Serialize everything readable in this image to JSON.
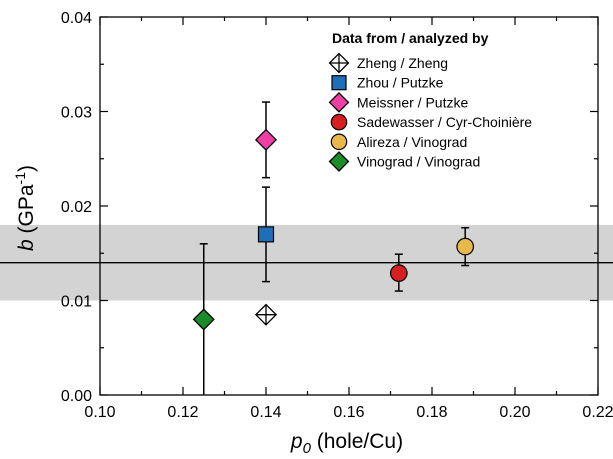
{
  "chart_data": {
    "type": "scatter",
    "x_label": {
      "symbol": "p",
      "subscript": "0",
      "rest": " (hole/Cu)"
    },
    "y_label": {
      "symbol": "b",
      "rest": " (GPa",
      "superscript": "-1",
      "close": ")"
    },
    "xlim": [
      0.1,
      0.22
    ],
    "ylim": [
      0.0,
      0.04
    ],
    "x_ticks": [
      "0.10",
      "0.12",
      "0.14",
      "0.16",
      "0.18",
      "0.20",
      "0.22"
    ],
    "y_ticks": [
      "0.00",
      "0.01",
      "0.02",
      "0.03",
      "0.04"
    ],
    "mean_line": 0.014,
    "band": [
      0.01,
      0.018
    ],
    "legend_title": "Data from / analyzed by",
    "series": [
      {
        "name": "Zheng / Zheng",
        "marker": "diamond-cross",
        "color": "#ffffff",
        "x": 0.14,
        "y": 0.0085,
        "err_low": 0.0085,
        "err_high": 0.0085
      },
      {
        "name": "Zhou / Putzke",
        "marker": "square",
        "color": "#1f6fb8",
        "x": 0.14,
        "y": 0.017,
        "err_low": 0.012,
        "err_high": 0.022
      },
      {
        "name": "Meissner / Putzke",
        "marker": "diamond",
        "color": "#ee3fa5",
        "x": 0.14,
        "y": 0.027,
        "err_low": 0.023,
        "err_high": 0.031
      },
      {
        "name": "Sadewasser / Cyr-Choinière",
        "marker": "circle",
        "color": "#d61f1f",
        "x": 0.172,
        "y": 0.0129,
        "err_low": 0.011,
        "err_high": 0.0149
      },
      {
        "name": "Alireza / Vinograd",
        "marker": "circle",
        "color": "#e8b84a",
        "x": 0.188,
        "y": 0.0157,
        "err_low": 0.0137,
        "err_high": 0.0177
      },
      {
        "name": "Vinograd / Vinograd",
        "marker": "diamond",
        "color": "#1a8c2a",
        "x": 0.125,
        "y": 0.008,
        "err_low": 0.0,
        "err_high": 0.016
      }
    ]
  }
}
